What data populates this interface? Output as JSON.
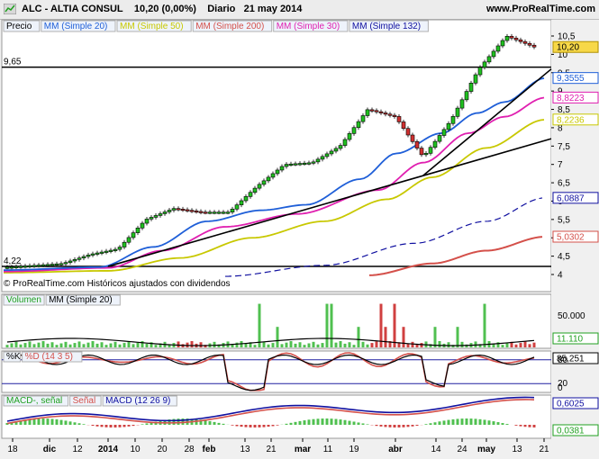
{
  "header": {
    "symbol_name": "ALC - ALTIA CONSUL",
    "price_change": "10,20 (0,00%)",
    "period": "Diario",
    "date": "21 may 2014",
    "site": "www.ProRealTime.com"
  },
  "price_legend": [
    {
      "label": "Precio",
      "color": "#000000"
    },
    {
      "label": "MM (Simple 20)",
      "color": "#1f5fd8"
    },
    {
      "label": "MM (Simple 50)",
      "color": "#c8c800"
    },
    {
      "label": "MM (Simple 200)",
      "color": "#d4504a"
    },
    {
      "label": "MM (Simple 30)",
      "color": "#e020b0"
    },
    {
      "label": "MM (Simple 132)",
      "color": "#1010a0"
    }
  ],
  "watermark": "© ProRealTime.com Históricos ajustados con dividendos",
  "levels": {
    "upper": "9,65",
    "lower": "4,22"
  },
  "price_badges": [
    {
      "value": "10,20",
      "bg": "#f7d848",
      "fg": "#000000"
    },
    {
      "value": "9,3555",
      "bg": "#ffffff",
      "fg": "#1f5fd8"
    },
    {
      "value": "8,8223",
      "bg": "#ffffff",
      "fg": "#e020b0"
    },
    {
      "value": "8,2236",
      "bg": "#ffffff",
      "fg": "#c8c800"
    },
    {
      "value": "6,0887",
      "bg": "#ffffff",
      "fg": "#1010a0"
    },
    {
      "value": "5,0302",
      "bg": "#ffffff",
      "fg": "#d4504a"
    }
  ],
  "volume_legend": [
    {
      "label": "Volumen",
      "color": "#20a020"
    },
    {
      "label": "MM (Simple 20)",
      "color": "#000000"
    }
  ],
  "volume_axis": {
    "tick": "50.000",
    "badge": "11.110"
  },
  "stoch_legend": [
    {
      "label": "%K",
      "color": "#000000"
    },
    {
      "label": "%D (14 3 5)",
      "color": "#d4504a"
    }
  ],
  "stoch_axis": {
    "badge": "85,251",
    "t80": "80",
    "t20": "20",
    "t0": "0"
  },
  "macd_legend": [
    {
      "label": "MACD-, señal",
      "color": "#20a020"
    },
    {
      "label": "Señal",
      "color": "#d4504a"
    },
    {
      "label": "MACD (12 26 9)",
      "color": "#1010a0"
    }
  ],
  "macd_axis": {
    "badge_top": "0,6025",
    "badge_bot": "0,0381"
  },
  "x_axis": [
    "18",
    "dic",
    "12",
    "2014",
    "10",
    "20",
    "28",
    "feb",
    "13",
    "21",
    "mar",
    "11",
    "19",
    "abr",
    "14",
    "24",
    "may",
    "13",
    "21"
  ],
  "chart_data": {
    "type": "candlestick",
    "title": "ALC - ALTIA CONSUL",
    "ylabel": "",
    "y_axis_ticks": [
      "10,5",
      "10",
      "9,5",
      "9",
      "8,5",
      "8",
      "7,5",
      "7",
      "6,5",
      "6",
      "5,5",
      "5",
      "4,5",
      "4"
    ],
    "ylim": [
      3.8,
      10.9
    ],
    "x_axis_labels": [
      "18",
      "dic",
      "12",
      "2014",
      "10",
      "20",
      "28",
      "feb",
      "13",
      "21",
      "mar",
      "11",
      "19",
      "abr",
      "14",
      "24",
      "may",
      "13",
      "21"
    ],
    "price_close_samples": [
      4.2,
      4.25,
      4.3,
      4.55,
      4.7,
      5.5,
      5.8,
      5.7,
      5.7,
      6.4,
      7.0,
      7.05,
      7.5,
      8.5,
      8.3,
      7.2,
      8.2,
      9.6,
      10.5,
      10.2
    ],
    "series": [
      {
        "name": "MM (Simple 20)",
        "last": 9.3555
      },
      {
        "name": "MM (Simple 30)",
        "last": 8.8223
      },
      {
        "name": "MM (Simple 50)",
        "last": 8.2236
      },
      {
        "name": "MM (Simple 132)",
        "last": 6.0887
      },
      {
        "name": "MM (Simple 200)",
        "last": 5.0302
      }
    ],
    "horizontal_levels": [
      9.65,
      4.22
    ]
  }
}
